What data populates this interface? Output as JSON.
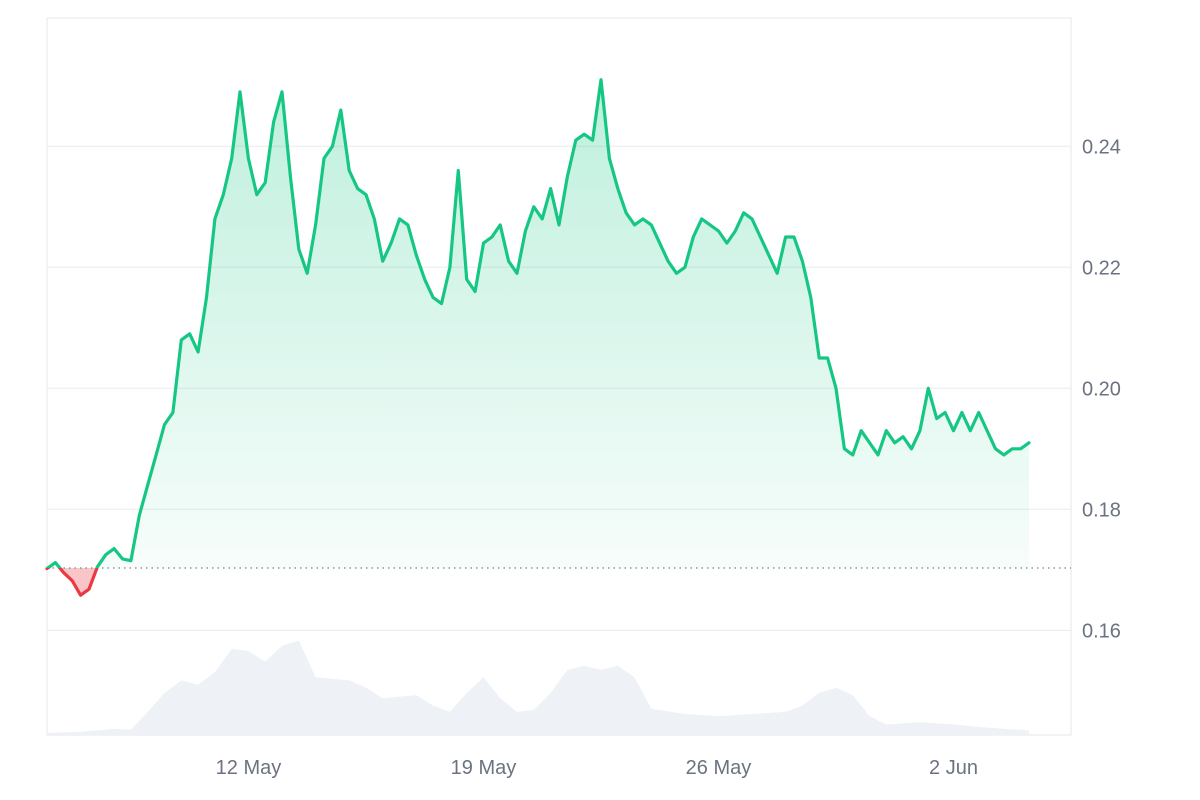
{
  "chart_data": {
    "type": "area",
    "baseline": 0.1703,
    "ylim": [
      0.1427,
      0.2612
    ],
    "y_ticks": [
      {
        "value": 0.24,
        "label": "0.24"
      },
      {
        "value": 0.22,
        "label": "0.22"
      },
      {
        "value": 0.2,
        "label": "0.20"
      },
      {
        "value": 0.18,
        "label": "0.18"
      },
      {
        "value": 0.16,
        "label": "0.16"
      }
    ],
    "x_range": [
      "2024-05-06T00:00",
      "2024-06-05T12:00"
    ],
    "x_ticks": [
      {
        "value": "2024-05-12",
        "label": "12 May"
      },
      {
        "value": "2024-05-19",
        "label": "19 May"
      },
      {
        "value": "2024-05-26",
        "label": "26 May"
      },
      {
        "value": "2024-06-02",
        "label": "2 Jun"
      }
    ],
    "colors": {
      "up": "#16c784",
      "down": "#ea3943",
      "volume": "#eef1f6",
      "grid": "#e8ebef",
      "axis_text": "#6b7280"
    },
    "series": [
      {
        "values": [
          [
            "2024-05-06T00:00",
            0.1702
          ],
          [
            "2024-05-06T06:00",
            0.1712
          ],
          [
            "2024-05-06T12:00",
            0.1695
          ],
          [
            "2024-05-06T18:00",
            0.1682
          ],
          [
            "2024-05-07T00:00",
            0.1658
          ],
          [
            "2024-05-07T06:00",
            0.1668
          ],
          [
            "2024-05-07T12:00",
            0.1705
          ],
          [
            "2024-05-07T18:00",
            0.1725
          ],
          [
            "2024-05-08T00:00",
            0.1735
          ],
          [
            "2024-05-08T06:00",
            0.1718
          ],
          [
            "2024-05-08T12:00",
            0.1715
          ],
          [
            "2024-05-08T18:00",
            0.179
          ],
          [
            "2024-05-09T00:00",
            0.184
          ],
          [
            "2024-05-09T06:00",
            0.189
          ],
          [
            "2024-05-09T12:00",
            0.194
          ],
          [
            "2024-05-09T18:00",
            0.196
          ],
          [
            "2024-05-10T00:00",
            0.208
          ],
          [
            "2024-05-10T06:00",
            0.209
          ],
          [
            "2024-05-10T12:00",
            0.206
          ],
          [
            "2024-05-10T18:00",
            0.215
          ],
          [
            "2024-05-11T00:00",
            0.228
          ],
          [
            "2024-05-11T06:00",
            0.232
          ],
          [
            "2024-05-11T12:00",
            0.238
          ],
          [
            "2024-05-11T18:00",
            0.249
          ],
          [
            "2024-05-12T00:00",
            0.238
          ],
          [
            "2024-05-12T06:00",
            0.232
          ],
          [
            "2024-05-12T12:00",
            0.234
          ],
          [
            "2024-05-12T18:00",
            0.244
          ],
          [
            "2024-05-13T00:00",
            0.249
          ],
          [
            "2024-05-13T06:00",
            0.235
          ],
          [
            "2024-05-13T12:00",
            0.223
          ],
          [
            "2024-05-13T18:00",
            0.219
          ],
          [
            "2024-05-14T00:00",
            0.227
          ],
          [
            "2024-05-14T06:00",
            0.238
          ],
          [
            "2024-05-14T12:00",
            0.24
          ],
          [
            "2024-05-14T18:00",
            0.246
          ],
          [
            "2024-05-15T00:00",
            0.236
          ],
          [
            "2024-05-15T06:00",
            0.233
          ],
          [
            "2024-05-15T12:00",
            0.232
          ],
          [
            "2024-05-15T18:00",
            0.228
          ],
          [
            "2024-05-16T00:00",
            0.221
          ],
          [
            "2024-05-16T06:00",
            0.224
          ],
          [
            "2024-05-16T12:00",
            0.228
          ],
          [
            "2024-05-16T18:00",
            0.227
          ],
          [
            "2024-05-17T00:00",
            0.222
          ],
          [
            "2024-05-17T06:00",
            0.218
          ],
          [
            "2024-05-17T12:00",
            0.215
          ],
          [
            "2024-05-17T18:00",
            0.214
          ],
          [
            "2024-05-18T00:00",
            0.22
          ],
          [
            "2024-05-18T06:00",
            0.236
          ],
          [
            "2024-05-18T12:00",
            0.218
          ],
          [
            "2024-05-18T18:00",
            0.216
          ],
          [
            "2024-05-19T00:00",
            0.224
          ],
          [
            "2024-05-19T06:00",
            0.225
          ],
          [
            "2024-05-19T12:00",
            0.227
          ],
          [
            "2024-05-19T18:00",
            0.221
          ],
          [
            "2024-05-20T00:00",
            0.219
          ],
          [
            "2024-05-20T06:00",
            0.226
          ],
          [
            "2024-05-20T12:00",
            0.23
          ],
          [
            "2024-05-20T18:00",
            0.228
          ],
          [
            "2024-05-21T00:00",
            0.233
          ],
          [
            "2024-05-21T06:00",
            0.227
          ],
          [
            "2024-05-21T12:00",
            0.235
          ],
          [
            "2024-05-21T18:00",
            0.241
          ],
          [
            "2024-05-22T00:00",
            0.242
          ],
          [
            "2024-05-22T06:00",
            0.241
          ],
          [
            "2024-05-22T12:00",
            0.251
          ],
          [
            "2024-05-22T18:00",
            0.238
          ],
          [
            "2024-05-23T00:00",
            0.233
          ],
          [
            "2024-05-23T06:00",
            0.229
          ],
          [
            "2024-05-23T12:00",
            0.227
          ],
          [
            "2024-05-23T18:00",
            0.228
          ],
          [
            "2024-05-24T00:00",
            0.227
          ],
          [
            "2024-05-24T06:00",
            0.224
          ],
          [
            "2024-05-24T12:00",
            0.221
          ],
          [
            "2024-05-24T18:00",
            0.219
          ],
          [
            "2024-05-25T00:00",
            0.22
          ],
          [
            "2024-05-25T06:00",
            0.225
          ],
          [
            "2024-05-25T12:00",
            0.228
          ],
          [
            "2024-05-25T18:00",
            0.227
          ],
          [
            "2024-05-26T00:00",
            0.226
          ],
          [
            "2024-05-26T06:00",
            0.224
          ],
          [
            "2024-05-26T12:00",
            0.226
          ],
          [
            "2024-05-26T18:00",
            0.229
          ],
          [
            "2024-05-27T00:00",
            0.228
          ],
          [
            "2024-05-27T06:00",
            0.225
          ],
          [
            "2024-05-27T12:00",
            0.222
          ],
          [
            "2024-05-27T18:00",
            0.219
          ],
          [
            "2024-05-28T00:00",
            0.225
          ],
          [
            "2024-05-28T06:00",
            0.225
          ],
          [
            "2024-05-28T12:00",
            0.221
          ],
          [
            "2024-05-28T18:00",
            0.215
          ],
          [
            "2024-05-29T00:00",
            0.205
          ],
          [
            "2024-05-29T06:00",
            0.205
          ],
          [
            "2024-05-29T12:00",
            0.2
          ],
          [
            "2024-05-29T18:00",
            0.19
          ],
          [
            "2024-05-30T00:00",
            0.189
          ],
          [
            "2024-05-30T06:00",
            0.193
          ],
          [
            "2024-05-30T12:00",
            0.191
          ],
          [
            "2024-05-30T18:00",
            0.189
          ],
          [
            "2024-05-31T00:00",
            0.193
          ],
          [
            "2024-05-31T06:00",
            0.191
          ],
          [
            "2024-05-31T12:00",
            0.192
          ],
          [
            "2024-05-31T18:00",
            0.19
          ],
          [
            "2024-06-01T00:00",
            0.193
          ],
          [
            "2024-06-01T06:00",
            0.2
          ],
          [
            "2024-06-01T12:00",
            0.195
          ],
          [
            "2024-06-01T18:00",
            0.196
          ],
          [
            "2024-06-02T00:00",
            0.193
          ],
          [
            "2024-06-02T06:00",
            0.196
          ],
          [
            "2024-06-02T12:00",
            0.193
          ],
          [
            "2024-06-02T18:00",
            0.196
          ],
          [
            "2024-06-03T00:00",
            0.193
          ],
          [
            "2024-06-03T06:00",
            0.19
          ],
          [
            "2024-06-03T12:00",
            0.189
          ],
          [
            "2024-06-03T18:00",
            0.19
          ],
          [
            "2024-06-04T00:00",
            0.19
          ],
          [
            "2024-06-04T06:00",
            0.191
          ]
        ]
      }
    ],
    "volume": [
      [
        "2024-05-06T00:00",
        0.02
      ],
      [
        "2024-05-07T00:00",
        0.03
      ],
      [
        "2024-05-08T00:00",
        0.06
      ],
      [
        "2024-05-08T12:00",
        0.05
      ],
      [
        "2024-05-09T00:00",
        0.22
      ],
      [
        "2024-05-09T12:00",
        0.4
      ],
      [
        "2024-05-10T00:00",
        0.52
      ],
      [
        "2024-05-10T12:00",
        0.48
      ],
      [
        "2024-05-11T00:00",
        0.6
      ],
      [
        "2024-05-11T12:00",
        0.82
      ],
      [
        "2024-05-12T00:00",
        0.8
      ],
      [
        "2024-05-12T12:00",
        0.7
      ],
      [
        "2024-05-13T00:00",
        0.85
      ],
      [
        "2024-05-13T12:00",
        0.9
      ],
      [
        "2024-05-14T00:00",
        0.55
      ],
      [
        "2024-05-15T00:00",
        0.52
      ],
      [
        "2024-05-15T12:00",
        0.45
      ],
      [
        "2024-05-16T00:00",
        0.35
      ],
      [
        "2024-05-17T00:00",
        0.38
      ],
      [
        "2024-05-17T12:00",
        0.28
      ],
      [
        "2024-05-18T00:00",
        0.22
      ],
      [
        "2024-05-18T12:00",
        0.4
      ],
      [
        "2024-05-19T00:00",
        0.55
      ],
      [
        "2024-05-19T12:00",
        0.35
      ],
      [
        "2024-05-20T00:00",
        0.22
      ],
      [
        "2024-05-20T12:00",
        0.24
      ],
      [
        "2024-05-21T00:00",
        0.4
      ],
      [
        "2024-05-21T12:00",
        0.62
      ],
      [
        "2024-05-22T00:00",
        0.66
      ],
      [
        "2024-05-22T12:00",
        0.62
      ],
      [
        "2024-05-23T00:00",
        0.66
      ],
      [
        "2024-05-23T12:00",
        0.55
      ],
      [
        "2024-05-24T00:00",
        0.25
      ],
      [
        "2024-05-25T00:00",
        0.2
      ],
      [
        "2024-05-26T00:00",
        0.18
      ],
      [
        "2024-05-27T00:00",
        0.2
      ],
      [
        "2024-05-28T00:00",
        0.22
      ],
      [
        "2024-05-28T12:00",
        0.28
      ],
      [
        "2024-05-29T00:00",
        0.4
      ],
      [
        "2024-05-29T12:00",
        0.45
      ],
      [
        "2024-05-30T00:00",
        0.38
      ],
      [
        "2024-05-30T12:00",
        0.18
      ],
      [
        "2024-05-31T00:00",
        0.1
      ],
      [
        "2024-06-01T00:00",
        0.12
      ],
      [
        "2024-06-02T00:00",
        0.1
      ],
      [
        "2024-06-03T00:00",
        0.07
      ],
      [
        "2024-06-04T00:00",
        0.05
      ],
      [
        "2024-06-04T06:00",
        0.04
      ]
    ]
  }
}
